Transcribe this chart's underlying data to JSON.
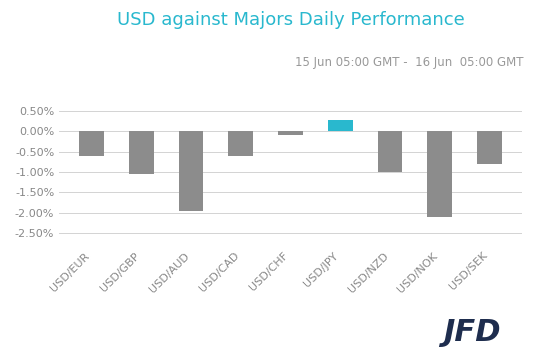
{
  "title": "USD against Majors Daily Performance",
  "subtitle": "15 Jun 05:00 GMT -  16 Jun  05:00 GMT",
  "categories": [
    "USD/EUR",
    "USD/GBP",
    "USD/AUD",
    "USD/CAD",
    "USD/CHF",
    "USD/JPY",
    "USD/NZD",
    "USD/NOK",
    "USD/SEK"
  ],
  "values": [
    -0.006,
    -0.0105,
    -0.0195,
    -0.006,
    -0.001,
    0.0027,
    -0.01,
    -0.021,
    -0.008
  ],
  "bar_colors": [
    "#8c8c8c",
    "#8c8c8c",
    "#8c8c8c",
    "#8c8c8c",
    "#8c8c8c",
    "#29b8ce",
    "#8c8c8c",
    "#8c8c8c",
    "#8c8c8c"
  ],
  "title_color": "#29b8ce",
  "subtitle_color": "#999999",
  "ylim": [
    -0.028,
    0.008
  ],
  "yticks": [
    0.005,
    0.0,
    -0.005,
    -0.01,
    -0.015,
    -0.02,
    -0.025
  ],
  "ytick_labels": [
    "0.50%",
    "0.00%",
    "-0.50%",
    "-1.00%",
    "-1.50%",
    "-2.00%",
    "-2.50%"
  ],
  "background_color": "#ffffff",
  "grid_color": "#d3d3d3",
  "title_fontsize": 13,
  "subtitle_fontsize": 8.5,
  "tick_label_fontsize": 8,
  "bar_width": 0.5,
  "jfd_color": "#1e2d4e"
}
